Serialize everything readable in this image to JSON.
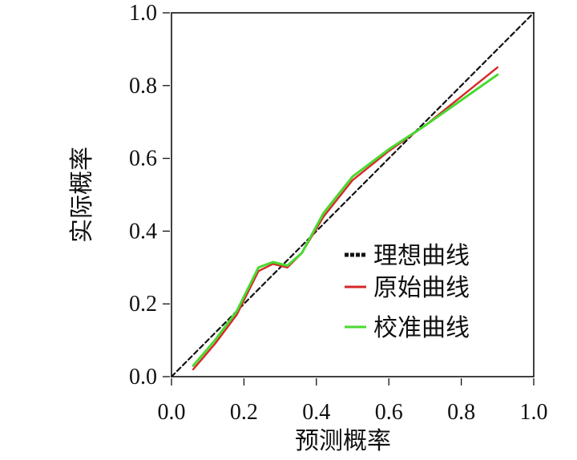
{
  "chart_data": {
    "type": "line",
    "xlabel": "预测概率",
    "ylabel": "实际概率",
    "xlim": [
      0.0,
      1.0
    ],
    "ylim": [
      0.0,
      1.0
    ],
    "x_ticks": [
      "0.0",
      "0.2",
      "0.4",
      "0.6",
      "0.8",
      "1.0"
    ],
    "y_ticks": [
      "0.0",
      "0.2",
      "0.4",
      "0.6",
      "0.8",
      "1.0"
    ],
    "grid": false,
    "legend_position": "right",
    "series": [
      {
        "name": "理想曲线",
        "color": "#111111",
        "style": "dashed",
        "points": [
          [
            0.0,
            0.0
          ],
          [
            1.0,
            1.0
          ]
        ]
      },
      {
        "name": "原始曲线",
        "color": "#d62828",
        "style": "solid",
        "points": [
          [
            0.06,
            0.02
          ],
          [
            0.12,
            0.09
          ],
          [
            0.18,
            0.17
          ],
          [
            0.24,
            0.29
          ],
          [
            0.28,
            0.31
          ],
          [
            0.32,
            0.3
          ],
          [
            0.36,
            0.34
          ],
          [
            0.42,
            0.44
          ],
          [
            0.5,
            0.54
          ],
          [
            0.6,
            0.62
          ],
          [
            0.7,
            0.69
          ],
          [
            0.8,
            0.77
          ],
          [
            0.9,
            0.85
          ]
        ]
      },
      {
        "name": "校准曲线",
        "color": "#49d930",
        "style": "solid",
        "points": [
          [
            0.06,
            0.03
          ],
          [
            0.12,
            0.1
          ],
          [
            0.18,
            0.18
          ],
          [
            0.24,
            0.3
          ],
          [
            0.28,
            0.315
          ],
          [
            0.32,
            0.305
          ],
          [
            0.36,
            0.34
          ],
          [
            0.42,
            0.45
          ],
          [
            0.5,
            0.55
          ],
          [
            0.6,
            0.625
          ],
          [
            0.7,
            0.69
          ],
          [
            0.8,
            0.76
          ],
          [
            0.9,
            0.83
          ]
        ]
      }
    ]
  }
}
